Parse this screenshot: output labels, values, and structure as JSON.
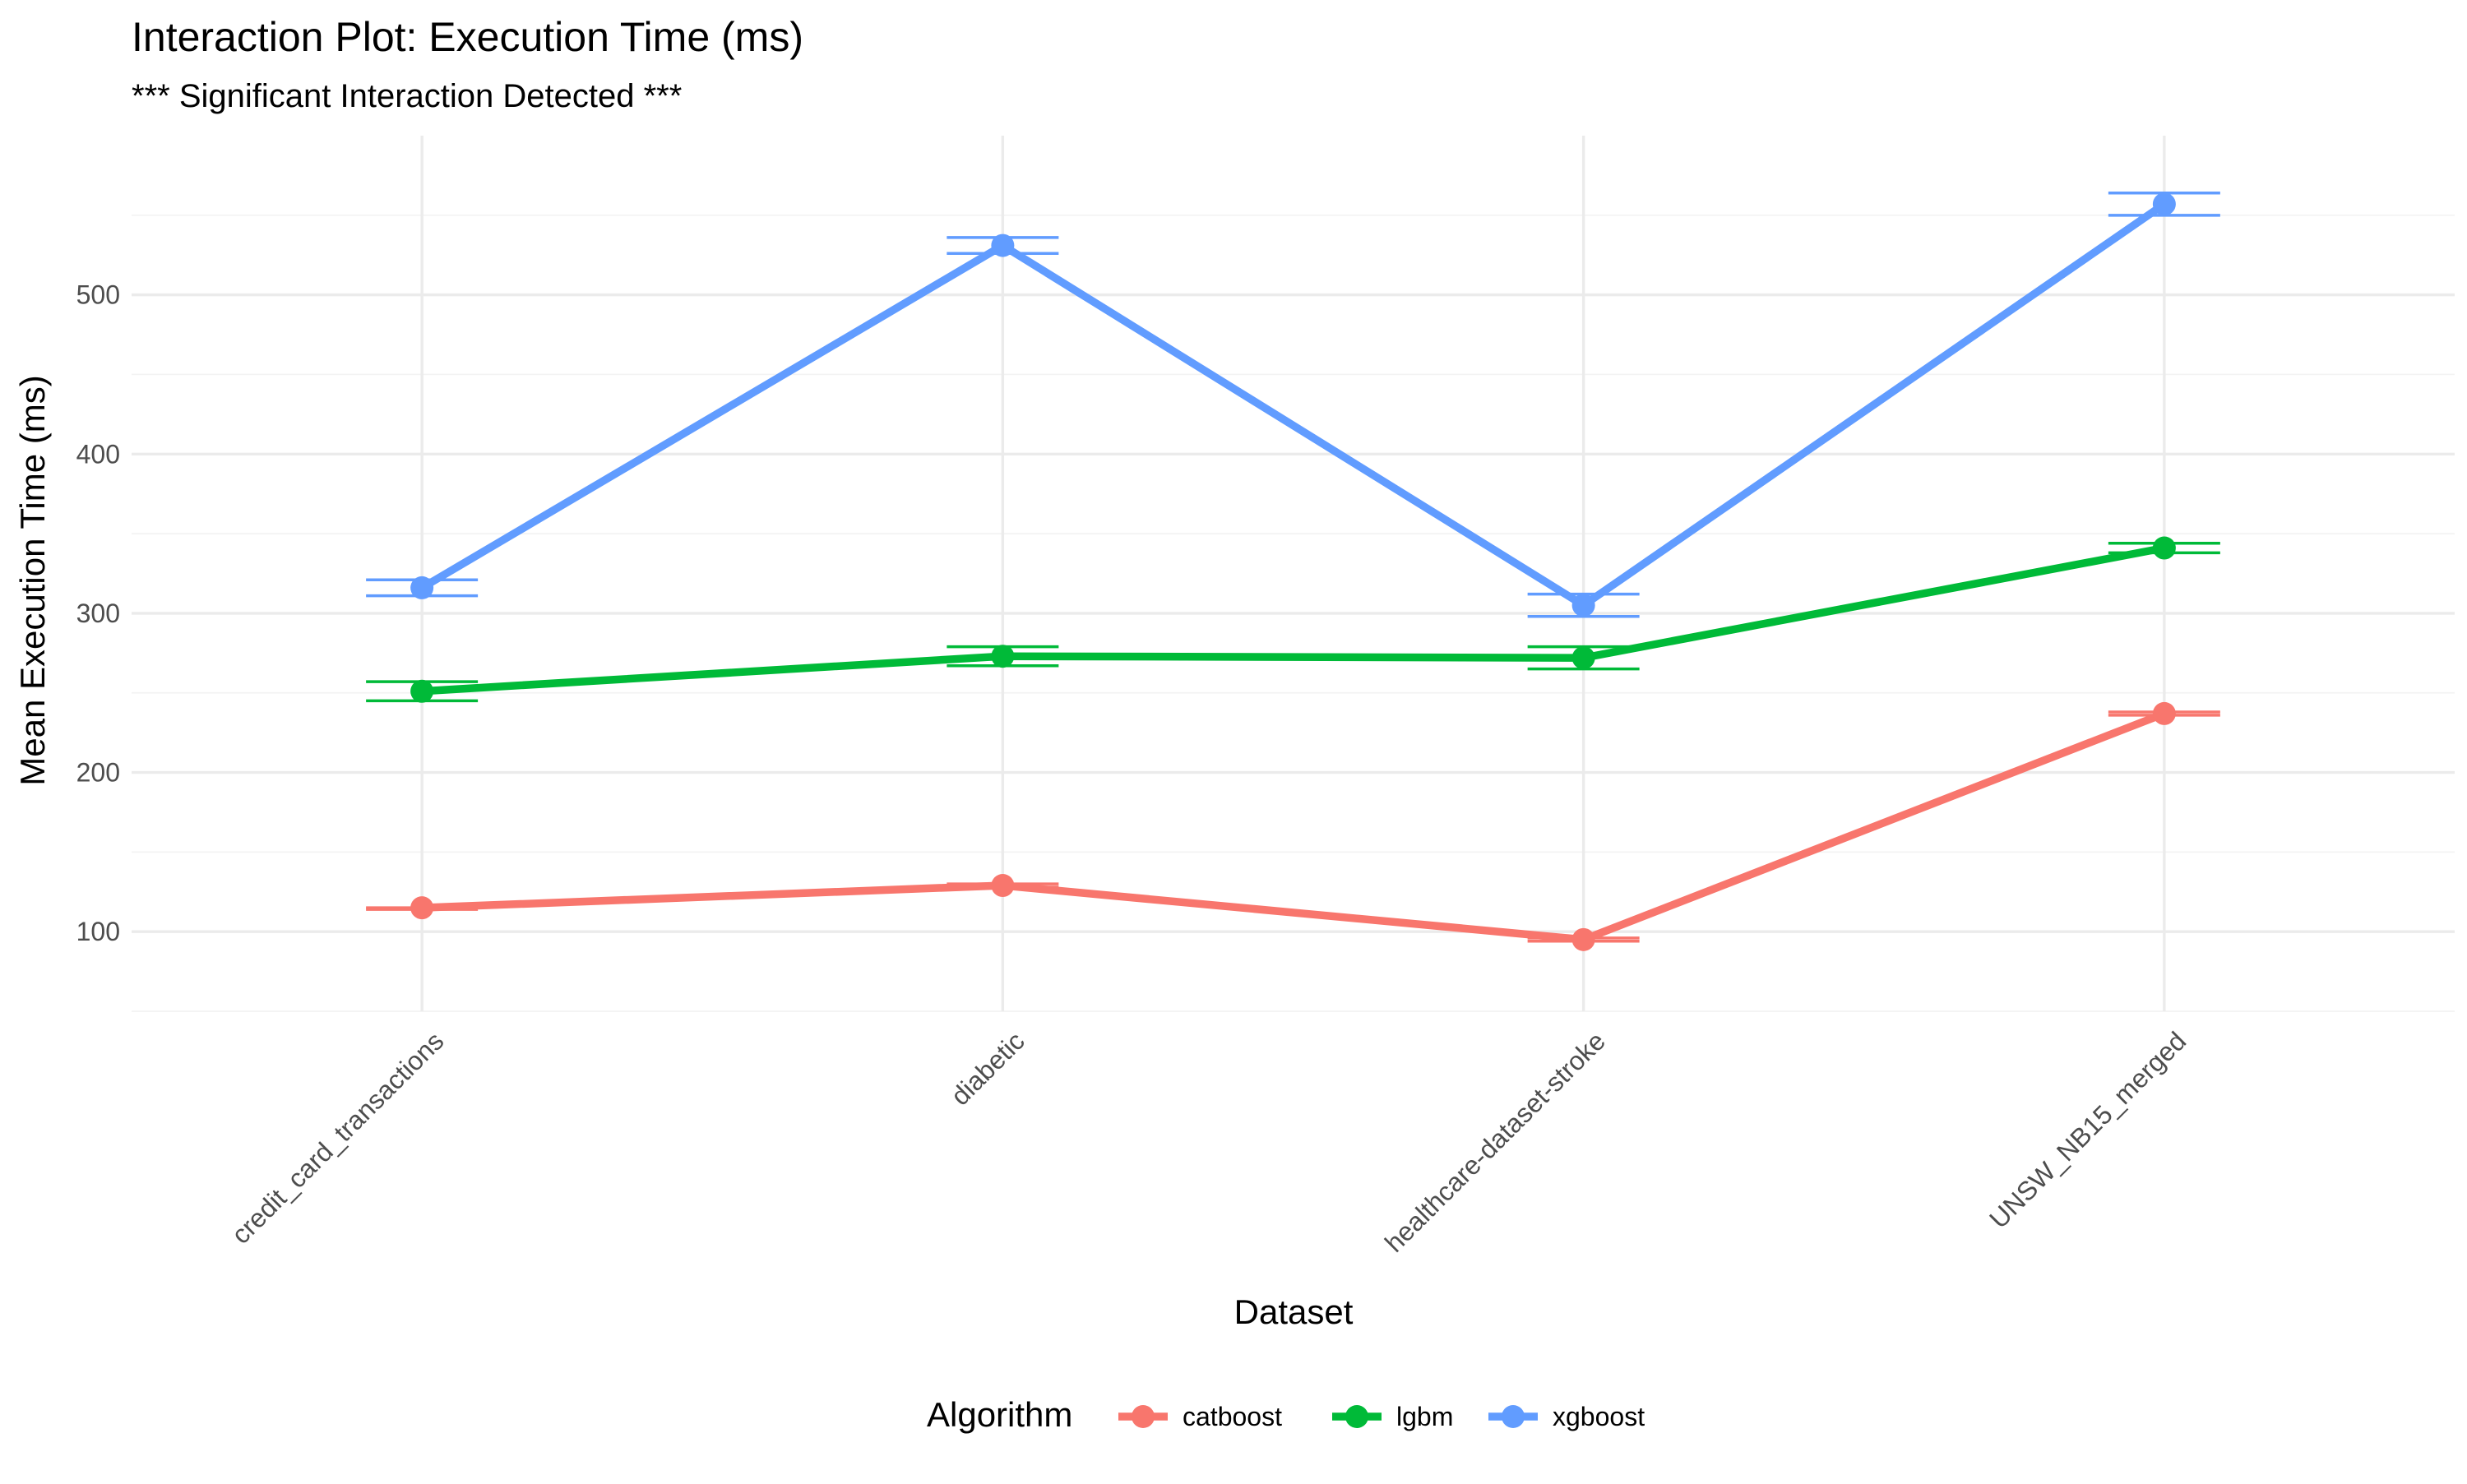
{
  "chart_data": {
    "type": "line",
    "title": "Interaction Plot: Execution Time (ms)",
    "subtitle": "*** Significant Interaction Detected ***",
    "xlabel": "Dataset",
    "ylabel": "Mean Execution Time (ms)",
    "categories": [
      "credit_card_transactions",
      "diabetic",
      "healthcare-dataset-stroke",
      "UNSW_NB15_merged"
    ],
    "ylim": [
      50,
      600
    ],
    "y_ticks": [
      100,
      200,
      300,
      400,
      500
    ],
    "grid": true,
    "error_bars": true,
    "legend": {
      "title": "Algorithm",
      "position": "bottom"
    },
    "series": [
      {
        "name": "catboost",
        "color": "#F8766D",
        "values": [
          115,
          129,
          95,
          237
        ],
        "error_low": [
          114,
          128,
          94,
          236
        ],
        "error_high": [
          115,
          130,
          96,
          238
        ]
      },
      {
        "name": "lgbm",
        "color": "#00BA38",
        "values": [
          251,
          273,
          272,
          341
        ],
        "error_low": [
          245,
          267,
          265,
          338
        ],
        "error_high": [
          257,
          279,
          279,
          344
        ]
      },
      {
        "name": "xgboost",
        "color": "#619CFF",
        "values": [
          316,
          531,
          305,
          557
        ],
        "error_low": [
          311,
          526,
          298,
          550
        ],
        "error_high": [
          321,
          536,
          312,
          564
        ]
      }
    ]
  }
}
